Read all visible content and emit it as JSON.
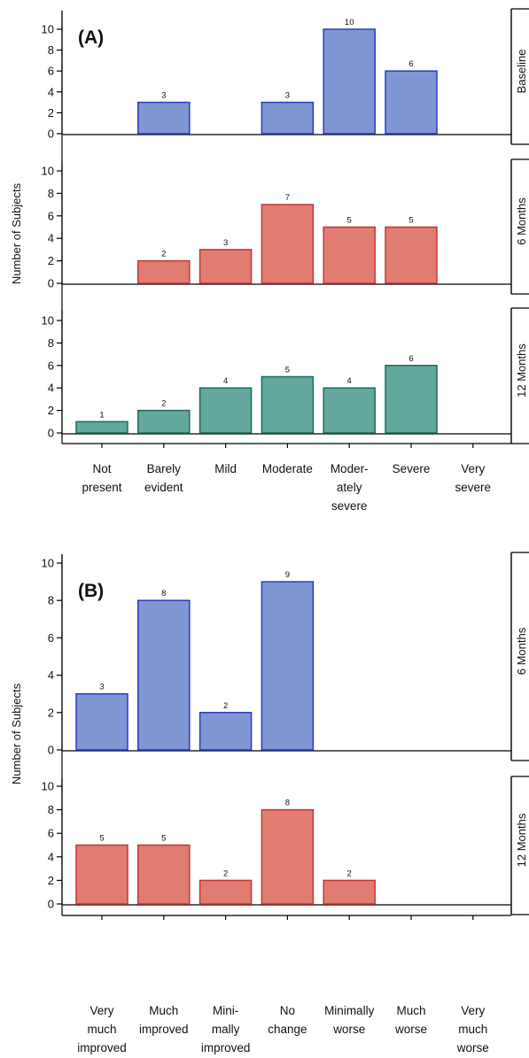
{
  "colors": {
    "blue_fill": "#7f96d2",
    "blue_edge": "#2b38c8",
    "red_fill": "#e07d70",
    "red_edge": "#c8323a",
    "teal_fill": "#64a79d",
    "teal_edge": "#1e6b5e",
    "axis": "#000000"
  },
  "chart_data": [
    {
      "type": "bar",
      "panel_letter": "(A)",
      "ylabel": "Number of Subjects",
      "ylim": [
        0,
        10
      ],
      "yticks": [
        "0",
        "2",
        "4",
        "6",
        "8",
        "10"
      ],
      "categories": [
        [
          "Not",
          "present"
        ],
        [
          "Barely",
          "evident"
        ],
        [
          "Mild"
        ],
        [
          "Moderate"
        ],
        [
          "Moder-",
          "ately",
          "severe"
        ],
        [
          "Severe"
        ],
        [
          "Very",
          "severe"
        ]
      ],
      "series": [
        {
          "name": "Baseline",
          "color": "blue",
          "values": [
            0,
            3,
            0,
            3,
            10,
            6,
            0
          ],
          "labels": [
            "",
            "3",
            "",
            "3",
            "10",
            "6",
            ""
          ]
        },
        {
          "name": "6 Months",
          "color": "red",
          "values": [
            0,
            2,
            3,
            7,
            5,
            5,
            0
          ],
          "labels": [
            "",
            "2",
            "3",
            "7",
            "5",
            "5",
            ""
          ]
        },
        {
          "name": "12 Months",
          "color": "teal",
          "values": [
            1,
            2,
            4,
            5,
            4,
            6,
            0
          ],
          "labels": [
            "1",
            "2",
            "4",
            "5",
            "4",
            "6",
            ""
          ]
        }
      ]
    },
    {
      "type": "bar",
      "panel_letter": "(B)",
      "ylabel": "Number of Subjects",
      "ylim": [
        0,
        10
      ],
      "yticks": [
        "0",
        "2",
        "4",
        "6",
        "8",
        "10"
      ],
      "categories": [
        [
          "Very",
          "much",
          "improved"
        ],
        [
          "Much",
          "improved"
        ],
        [
          "Mini-",
          "mally",
          "improved"
        ],
        [
          "No",
          "change"
        ],
        [
          "Minimally",
          "worse"
        ],
        [
          "Much",
          "worse"
        ],
        [
          "Very",
          "much",
          "worse"
        ]
      ],
      "series": [
        {
          "name": "6 Months",
          "color": "blue",
          "values": [
            3,
            8,
            2,
            9,
            0,
            0,
            0
          ],
          "labels": [
            "3",
            "8",
            "2",
            "9",
            "",
            "",
            ""
          ]
        },
        {
          "name": "12 Months",
          "color": "red",
          "values": [
            5,
            5,
            2,
            8,
            2,
            0,
            0
          ],
          "labels": [
            "5",
            "5",
            "2",
            "8",
            "2",
            "",
            ""
          ]
        }
      ]
    }
  ]
}
